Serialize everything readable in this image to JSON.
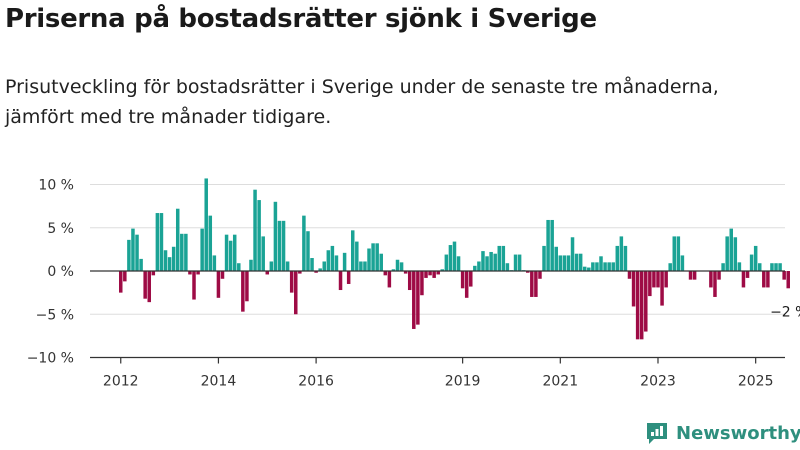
{
  "title": "Priserna på bostadsrätter sjönk i Sverige",
  "subtitle": "Prisutveckling för bostadsrätter i Sverige under de senaste tre månaderna, jämfört med tre månader tidigare.",
  "brand": {
    "name": "Newsworthy",
    "icon": "newsworthy-logo-icon"
  },
  "colors": {
    "positive": "#1aa395",
    "negative": "#9e0b45",
    "axis": "#333333",
    "grid": "#dddddd"
  },
  "chart_data": {
    "type": "bar",
    "title": "",
    "xlabel": "",
    "ylabel": "",
    "ylim": [
      -10,
      11
    ],
    "y_ticks": [
      {
        "value": 10,
        "label": "10 %"
      },
      {
        "value": 5,
        "label": "5 %"
      },
      {
        "value": 0,
        "label": "0 %"
      },
      {
        "value": -5,
        "label": "−5 %"
      },
      {
        "value": -10,
        "label": "−10 %"
      }
    ],
    "x_ticks": [
      {
        "month_index": 0,
        "label": "2012"
      },
      {
        "month_index": 24,
        "label": "2014"
      },
      {
        "month_index": 48,
        "label": "2016"
      },
      {
        "month_index": 84,
        "label": "2019"
      },
      {
        "month_index": 108,
        "label": "2021"
      },
      {
        "month_index": 132,
        "label": "2023"
      },
      {
        "month_index": 156,
        "label": "2025"
      }
    ],
    "annotation": {
      "text": "−2 %"
    },
    "values": [
      -2.5,
      -1.2,
      3.6,
      4.9,
      4.2,
      1.4,
      -3.2,
      -3.6,
      -0.5,
      6.7,
      6.7,
      2.4,
      1.6,
      2.8,
      7.2,
      4.3,
      4.3,
      -0.4,
      -3.3,
      -0.4,
      4.9,
      10.7,
      6.4,
      1.8,
      -3.1,
      -0.9,
      4.2,
      3.5,
      4.2,
      0.9,
      -4.7,
      -3.5,
      1.3,
      9.4,
      8.2,
      4.0,
      -0.4,
      1.1,
      8.0,
      5.8,
      5.8,
      1.1,
      -2.5,
      -5.0,
      -0.3,
      6.4,
      4.6,
      1.5,
      -0.2,
      0.3,
      1.1,
      2.4,
      2.9,
      1.8,
      -2.2,
      2.1,
      -1.5,
      4.7,
      3.4,
      1.1,
      1.1,
      2.6,
      3.2,
      3.2,
      2.0,
      -0.5,
      -1.9,
      0.2,
      1.3,
      1.0,
      -0.3,
      -2.2,
      -6.7,
      -6.2,
      -2.8,
      -0.8,
      -0.5,
      -0.8,
      -0.4,
      0.2,
      1.9,
      3.0,
      3.4,
      1.7,
      -2.0,
      -3.1,
      -1.8,
      0.6,
      1.1,
      2.3,
      1.7,
      2.2,
      2.0,
      2.9,
      2.9,
      0.9,
      0.1,
      1.9,
      1.9,
      0.1,
      -0.2,
      -3.0,
      -3.0,
      -0.9,
      2.9,
      5.9,
      5.9,
      2.8,
      1.8,
      1.8,
      1.8,
      3.9,
      2.0,
      2.0,
      0.5,
      0.4,
      1.0,
      1.0,
      1.7,
      1.0,
      1.0,
      1.0,
      2.9,
      4.0,
      2.9,
      -0.9,
      -4.1,
      -7.9,
      -7.9,
      -7.0,
      -2.9,
      -1.9,
      -1.9,
      -4.0,
      -1.9,
      0.9,
      4.0,
      4.0,
      1.8,
      0.0,
      -1.0,
      -1.0,
      0.0,
      0.0,
      0.0,
      -1.9,
      -3.0,
      -1.0,
      0.9,
      4.0,
      4.9,
      3.9,
      1.0,
      -1.9,
      -0.8,
      1.9,
      2.9,
      0.9,
      -1.9,
      -1.9,
      0.9,
      0.9,
      0.9,
      -1.0,
      -2.0
    ]
  }
}
